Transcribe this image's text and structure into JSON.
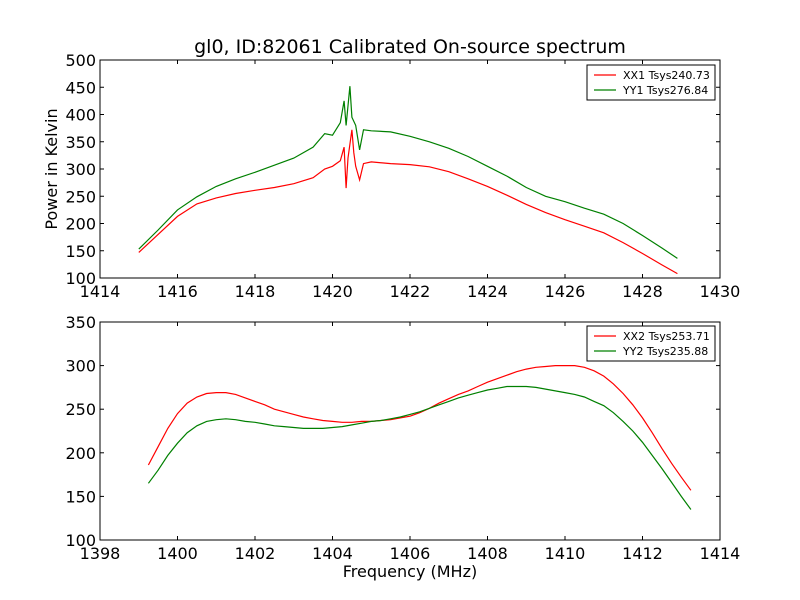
{
  "chart_data": [
    {
      "type": "line",
      "title": "gl0, ID:82061 Calibrated On-source spectrum",
      "xlabel": "",
      "ylabel": "Power in Kelvin",
      "xlim": [
        1414,
        1430
      ],
      "ylim": [
        100,
        500
      ],
      "xticks": [
        1414,
        1416,
        1418,
        1420,
        1422,
        1424,
        1426,
        1428,
        1430
      ],
      "yticks": [
        100,
        150,
        200,
        250,
        300,
        350,
        400,
        450,
        500
      ],
      "legend_position": "top-right",
      "grid": false,
      "series": [
        {
          "name": "XX1 Tsys240.73",
          "color": "#ff0000",
          "points": [
            [
              1415.0,
              147
            ],
            [
              1415.5,
              180
            ],
            [
              1416.0,
              213
            ],
            [
              1416.5,
              236
            ],
            [
              1417.0,
              247
            ],
            [
              1417.5,
              255
            ],
            [
              1418.0,
              261
            ],
            [
              1418.5,
              266
            ],
            [
              1419.0,
              273
            ],
            [
              1419.5,
              284
            ],
            [
              1419.8,
              300
            ],
            [
              1420.0,
              305
            ],
            [
              1420.2,
              315
            ],
            [
              1420.3,
              340
            ],
            [
              1420.35,
              265
            ],
            [
              1420.4,
              320
            ],
            [
              1420.5,
              372
            ],
            [
              1420.55,
              330
            ],
            [
              1420.6,
              305
            ],
            [
              1420.7,
              280
            ],
            [
              1420.8,
              310
            ],
            [
              1421.0,
              313
            ],
            [
              1421.5,
              310
            ],
            [
              1422.0,
              308
            ],
            [
              1422.5,
              304
            ],
            [
              1423.0,
              295
            ],
            [
              1423.5,
              282
            ],
            [
              1424.0,
              268
            ],
            [
              1424.5,
              252
            ],
            [
              1425.0,
              235
            ],
            [
              1425.5,
              220
            ],
            [
              1426.0,
              207
            ],
            [
              1426.5,
              195
            ],
            [
              1427.0,
              183
            ],
            [
              1427.5,
              165
            ],
            [
              1428.0,
              145
            ],
            [
              1428.5,
              124
            ],
            [
              1428.9,
              108
            ]
          ]
        },
        {
          "name": "YY1 Tsys276.84",
          "color": "#008000",
          "points": [
            [
              1415.0,
              153
            ],
            [
              1415.5,
              188
            ],
            [
              1416.0,
              225
            ],
            [
              1416.5,
              249
            ],
            [
              1417.0,
              268
            ],
            [
              1417.5,
              282
            ],
            [
              1418.0,
              294
            ],
            [
              1418.5,
              307
            ],
            [
              1419.0,
              320
            ],
            [
              1419.5,
              340
            ],
            [
              1419.8,
              365
            ],
            [
              1420.0,
              362
            ],
            [
              1420.2,
              385
            ],
            [
              1420.3,
              425
            ],
            [
              1420.35,
              380
            ],
            [
              1420.45,
              452
            ],
            [
              1420.5,
              395
            ],
            [
              1420.6,
              380
            ],
            [
              1420.7,
              335
            ],
            [
              1420.8,
              372
            ],
            [
              1421.0,
              370
            ],
            [
              1421.5,
              368
            ],
            [
              1422.0,
              360
            ],
            [
              1422.5,
              350
            ],
            [
              1423.0,
              338
            ],
            [
              1423.5,
              323
            ],
            [
              1424.0,
              305
            ],
            [
              1424.5,
              287
            ],
            [
              1425.0,
              266
            ],
            [
              1425.5,
              250
            ],
            [
              1426.0,
              240
            ],
            [
              1426.5,
              228
            ],
            [
              1427.0,
              217
            ],
            [
              1427.5,
              200
            ],
            [
              1428.0,
              178
            ],
            [
              1428.5,
              155
            ],
            [
              1428.9,
              136
            ]
          ]
        }
      ]
    },
    {
      "type": "line",
      "title": "",
      "xlabel": "Frequency (MHz)",
      "ylabel": "",
      "xlim": [
        1398,
        1414
      ],
      "ylim": [
        100,
        350
      ],
      "xticks": [
        1398,
        1400,
        1402,
        1404,
        1406,
        1408,
        1410,
        1412,
        1414
      ],
      "yticks": [
        100,
        150,
        200,
        250,
        300,
        350
      ],
      "legend_position": "top-right",
      "grid": false,
      "series": [
        {
          "name": "XX2 Tsys253.71",
          "color": "#ff0000",
          "points": [
            [
              1399.25,
              186
            ],
            [
              1399.5,
              207
            ],
            [
              1399.75,
              228
            ],
            [
              1400.0,
              245
            ],
            [
              1400.25,
              257
            ],
            [
              1400.5,
              264
            ],
            [
              1400.75,
              268
            ],
            [
              1401.0,
              269
            ],
            [
              1401.25,
              269
            ],
            [
              1401.5,
              267
            ],
            [
              1401.75,
              263
            ],
            [
              1402.0,
              259
            ],
            [
              1402.25,
              255
            ],
            [
              1402.5,
              250
            ],
            [
              1402.75,
              247
            ],
            [
              1403.0,
              244
            ],
            [
              1403.25,
              241
            ],
            [
              1403.5,
              239
            ],
            [
              1403.75,
              237
            ],
            [
              1404.0,
              236
            ],
            [
              1404.25,
              235
            ],
            [
              1404.5,
              235
            ],
            [
              1404.75,
              236
            ],
            [
              1405.0,
              236
            ],
            [
              1405.25,
              237
            ],
            [
              1405.5,
              238
            ],
            [
              1405.75,
              240
            ],
            [
              1406.0,
              242
            ],
            [
              1406.25,
              246
            ],
            [
              1406.5,
              251
            ],
            [
              1406.75,
              257
            ],
            [
              1407.0,
              262
            ],
            [
              1407.25,
              267
            ],
            [
              1407.5,
              271
            ],
            [
              1407.75,
              276
            ],
            [
              1408.0,
              281
            ],
            [
              1408.25,
              285
            ],
            [
              1408.5,
              289
            ],
            [
              1408.75,
              293
            ],
            [
              1409.0,
              296
            ],
            [
              1409.25,
              298
            ],
            [
              1409.5,
              299
            ],
            [
              1409.75,
              300
            ],
            [
              1410.0,
              300
            ],
            [
              1410.25,
              300
            ],
            [
              1410.5,
              298
            ],
            [
              1410.75,
              294
            ],
            [
              1411.0,
              288
            ],
            [
              1411.25,
              279
            ],
            [
              1411.5,
              268
            ],
            [
              1411.75,
              255
            ],
            [
              1412.0,
              240
            ],
            [
              1412.25,
              223
            ],
            [
              1412.5,
              205
            ],
            [
              1412.75,
              188
            ],
            [
              1413.0,
              172
            ],
            [
              1413.25,
              157
            ]
          ]
        },
        {
          "name": "YY2 Tsys235.88",
          "color": "#008000",
          "points": [
            [
              1399.25,
              165
            ],
            [
              1399.5,
              180
            ],
            [
              1399.75,
              197
            ],
            [
              1400.0,
              211
            ],
            [
              1400.25,
              223
            ],
            [
              1400.5,
              231
            ],
            [
              1400.75,
              236
            ],
            [
              1401.0,
              238
            ],
            [
              1401.25,
              239
            ],
            [
              1401.5,
              238
            ],
            [
              1401.75,
              236
            ],
            [
              1402.0,
              235
            ],
            [
              1402.25,
              233
            ],
            [
              1402.5,
              231
            ],
            [
              1402.75,
              230
            ],
            [
              1403.0,
              229
            ],
            [
              1403.25,
              228
            ],
            [
              1403.5,
              228
            ],
            [
              1403.75,
              228
            ],
            [
              1404.0,
              229
            ],
            [
              1404.25,
              230
            ],
            [
              1404.5,
              232
            ],
            [
              1404.75,
              234
            ],
            [
              1405.0,
              236
            ],
            [
              1405.25,
              237
            ],
            [
              1405.5,
              239
            ],
            [
              1405.75,
              241
            ],
            [
              1406.0,
              244
            ],
            [
              1406.25,
              247
            ],
            [
              1406.5,
              251
            ],
            [
              1406.75,
              255
            ],
            [
              1407.0,
              259
            ],
            [
              1407.25,
              263
            ],
            [
              1407.5,
              266
            ],
            [
              1407.75,
              269
            ],
            [
              1408.0,
              272
            ],
            [
              1408.25,
              274
            ],
            [
              1408.5,
              276
            ],
            [
              1408.75,
              276
            ],
            [
              1409.0,
              276
            ],
            [
              1409.25,
              275
            ],
            [
              1409.5,
              273
            ],
            [
              1409.75,
              271
            ],
            [
              1410.0,
              269
            ],
            [
              1410.25,
              267
            ],
            [
              1410.5,
              264
            ],
            [
              1410.75,
              259
            ],
            [
              1411.0,
              254
            ],
            [
              1411.25,
              246
            ],
            [
              1411.5,
              236
            ],
            [
              1411.75,
              225
            ],
            [
              1412.0,
              212
            ],
            [
              1412.25,
              197
            ],
            [
              1412.5,
              182
            ],
            [
              1412.75,
              166
            ],
            [
              1413.0,
              150
            ],
            [
              1413.25,
              135
            ]
          ]
        }
      ]
    }
  ]
}
